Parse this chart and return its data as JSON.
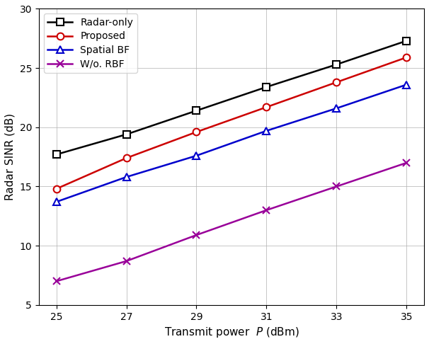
{
  "x": [
    25,
    27,
    29,
    31,
    33,
    35
  ],
  "radar_only": [
    17.7,
    19.4,
    21.4,
    23.4,
    25.3,
    27.3
  ],
  "proposed": [
    14.8,
    17.4,
    19.6,
    21.7,
    23.8,
    25.9
  ],
  "spatial_bf": [
    13.7,
    15.8,
    17.6,
    19.7,
    21.6,
    23.6
  ],
  "wo_rbf": [
    7.0,
    8.7,
    10.9,
    13.0,
    15.0,
    17.0
  ],
  "xlabel": "Transmit power  $P$ (dBm)",
  "ylabel": "Radar SINR (dB)",
  "ylim": [
    5,
    30
  ],
  "xlim": [
    24.5,
    35.5
  ],
  "xticks": [
    25,
    27,
    29,
    31,
    33,
    35
  ],
  "yticks": [
    5,
    10,
    15,
    20,
    25,
    30
  ],
  "legend_labels": [
    "Radar-only",
    "Proposed",
    "Spatial BF",
    "W/o. RBF"
  ],
  "colors": [
    "#000000",
    "#cc0000",
    "#0000cc",
    "#990099"
  ],
  "markers": [
    "s",
    "o",
    "^",
    "x"
  ],
  "linewidth": 1.8,
  "markersize": 7,
  "grid": true,
  "legend_loc": "upper left"
}
